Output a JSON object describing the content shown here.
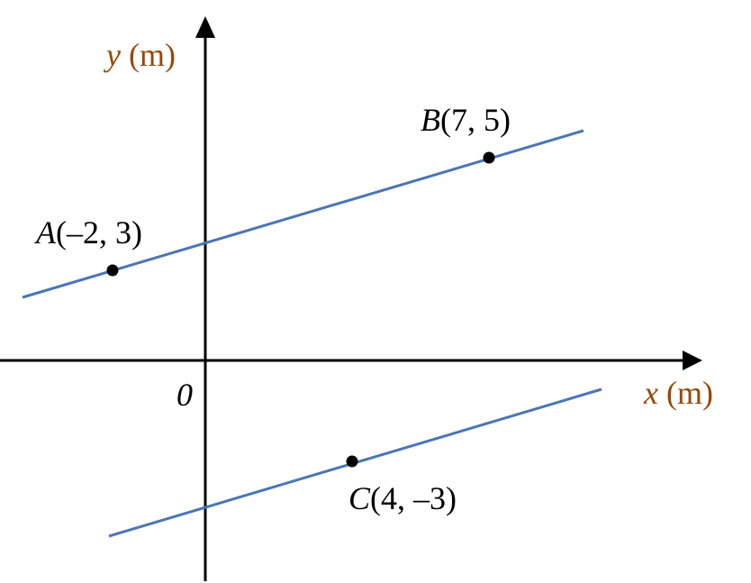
{
  "axes": {
    "x": {
      "variable": "x",
      "unit": "(m)"
    },
    "y": {
      "variable": "y",
      "unit": "(m)"
    },
    "origin": "0"
  },
  "points": [
    {
      "name": "A",
      "coords": "(–2, 3)"
    },
    {
      "name": "B",
      "coords": "(7, 5)"
    },
    {
      "name": "C",
      "coords": "(4, –3)"
    }
  ]
}
